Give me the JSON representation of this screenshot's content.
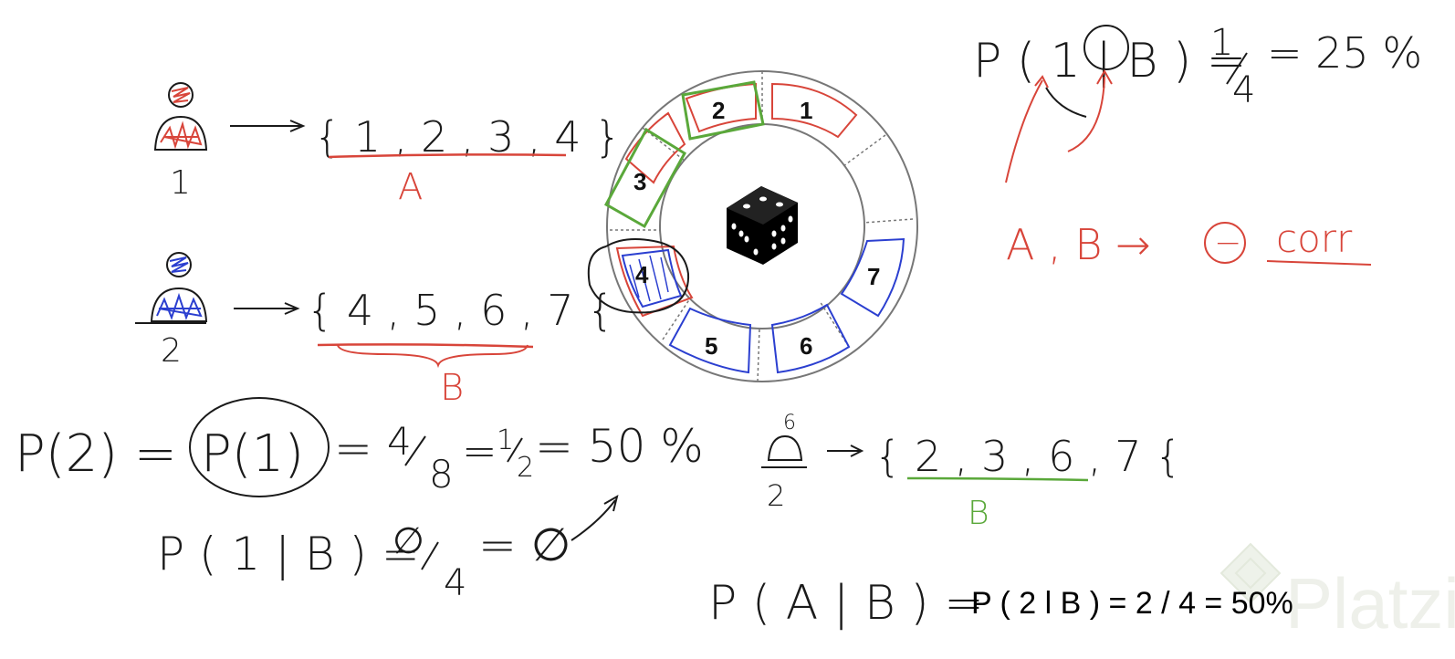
{
  "colors": {
    "ink": "#1a1a1a",
    "red": "#d8453a",
    "blue": "#2b3fd0",
    "green": "#5aa83a",
    "ring": "#777777",
    "watermark": "#eef2ea"
  },
  "players": [
    {
      "label": "1",
      "color": "red",
      "set_text": "{ 1 , 2 , 3 , 4 }",
      "set_name": "A"
    },
    {
      "label": "2",
      "color": "blue",
      "set_text": "{ 4 , 5 , 6 , 7 {",
      "set_name": "B"
    }
  ],
  "wheel": {
    "icon": "dice-icon",
    "segments": [
      {
        "number": "1"
      },
      {
        "number": "2"
      },
      {
        "number": "3"
      },
      {
        "number": "4"
      },
      {
        "number": "5"
      },
      {
        "number": "6"
      },
      {
        "number": "7"
      }
    ]
  },
  "top_right": {
    "equation_lhs": "P ( 1 | B ) =",
    "equation_frac_num": "1",
    "equation_frac_den": "4",
    "equation_rhs": "= 25 %",
    "corr_text_ab": "A , B →",
    "corr_sign": "−",
    "corr_word": "corr"
  },
  "bottom": {
    "p2_lhs": "P(2) =",
    "p1_circled": "P(1)",
    "p2_rhs_pre": "=",
    "p2_frac1_num": "4",
    "p2_frac1_den": "8",
    "p2_eq": "=",
    "p2_frac2_num": "1",
    "p2_frac2_den": "2",
    "p2_result": "= 50 %",
    "p1b_lhs": "P ( 1 | B ) =",
    "p1b_frac_num": "∅",
    "p1b_frac_den": "4",
    "p1b_result": "= ∅",
    "player2_small_label": "2",
    "player2_small_head": "6",
    "new_set_text": "{ 2 , 3 , 6 , 7 {",
    "new_set_name": "B",
    "pab_handwritten": "P ( A | B ) =",
    "pab_typed": "P ( 2 l B ) = 2 / 4 = 50%"
  },
  "watermark": {
    "text": "Platzi",
    "icon": "platzi-logo-icon"
  }
}
